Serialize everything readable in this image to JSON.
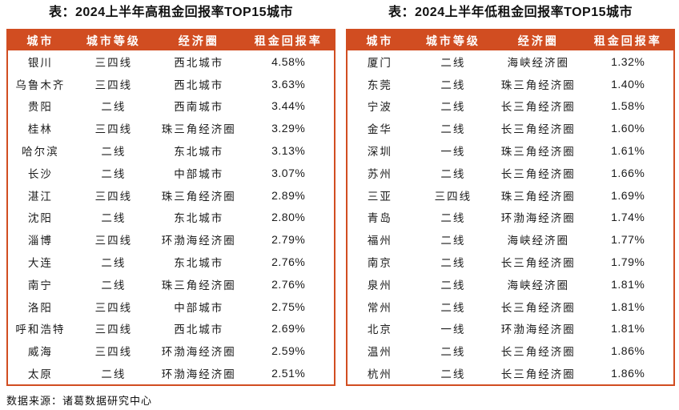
{
  "colors": {
    "accent": "#D14D21",
    "header_text": "#FFFFFF",
    "body_text": "#1A1A1A"
  },
  "source_note": "数据来源：诸葛数据研究中心",
  "chart_data": [
    {
      "type": "table",
      "title": "表：2024上半年高租金回报率TOP15城市",
      "columns": [
        "城市",
        "城市等级",
        "经济圈",
        "租金回报率"
      ],
      "rows": [
        [
          "银川",
          "三四线",
          "西北城市",
          "4.58%"
        ],
        [
          "乌鲁木齐",
          "三四线",
          "西北城市",
          "3.63%"
        ],
        [
          "贵阳",
          "二线",
          "西南城市",
          "3.44%"
        ],
        [
          "桂林",
          "三四线",
          "珠三角经济圈",
          "3.29%"
        ],
        [
          "哈尔滨",
          "二线",
          "东北城市",
          "3.13%"
        ],
        [
          "长沙",
          "二线",
          "中部城市",
          "3.07%"
        ],
        [
          "湛江",
          "三四线",
          "珠三角经济圈",
          "2.89%"
        ],
        [
          "沈阳",
          "二线",
          "东北城市",
          "2.80%"
        ],
        [
          "淄博",
          "三四线",
          "环渤海经济圈",
          "2.79%"
        ],
        [
          "大连",
          "二线",
          "东北城市",
          "2.76%"
        ],
        [
          "南宁",
          "二线",
          "珠三角经济圈",
          "2.76%"
        ],
        [
          "洛阳",
          "三四线",
          "中部城市",
          "2.75%"
        ],
        [
          "呼和浩特",
          "三四线",
          "西北城市",
          "2.69%"
        ],
        [
          "威海",
          "三四线",
          "环渤海经济圈",
          "2.59%"
        ],
        [
          "太原",
          "二线",
          "环渤海经济圈",
          "2.51%"
        ]
      ]
    },
    {
      "type": "table",
      "title": "表：2024上半年低租金回报率TOP15城市",
      "columns": [
        "城市",
        "城市等级",
        "经济圈",
        "租金回报率"
      ],
      "rows": [
        [
          "厦门",
          "二线",
          "海峡经济圈",
          "1.32%"
        ],
        [
          "东莞",
          "二线",
          "珠三角经济圈",
          "1.40%"
        ],
        [
          "宁波",
          "二线",
          "长三角经济圈",
          "1.58%"
        ],
        [
          "金华",
          "二线",
          "长三角经济圈",
          "1.60%"
        ],
        [
          "深圳",
          "一线",
          "珠三角经济圈",
          "1.61%"
        ],
        [
          "苏州",
          "二线",
          "长三角经济圈",
          "1.66%"
        ],
        [
          "三亚",
          "三四线",
          "珠三角经济圈",
          "1.69%"
        ],
        [
          "青岛",
          "二线",
          "环渤海经济圈",
          "1.74%"
        ],
        [
          "福州",
          "二线",
          "海峡经济圈",
          "1.77%"
        ],
        [
          "南京",
          "二线",
          "长三角经济圈",
          "1.79%"
        ],
        [
          "泉州",
          "二线",
          "海峡经济圈",
          "1.81%"
        ],
        [
          "常州",
          "二线",
          "长三角经济圈",
          "1.81%"
        ],
        [
          "北京",
          "一线",
          "环渤海经济圈",
          "1.81%"
        ],
        [
          "温州",
          "二线",
          "长三角经济圈",
          "1.86%"
        ],
        [
          "杭州",
          "二线",
          "长三角经济圈",
          "1.86%"
        ]
      ]
    }
  ]
}
